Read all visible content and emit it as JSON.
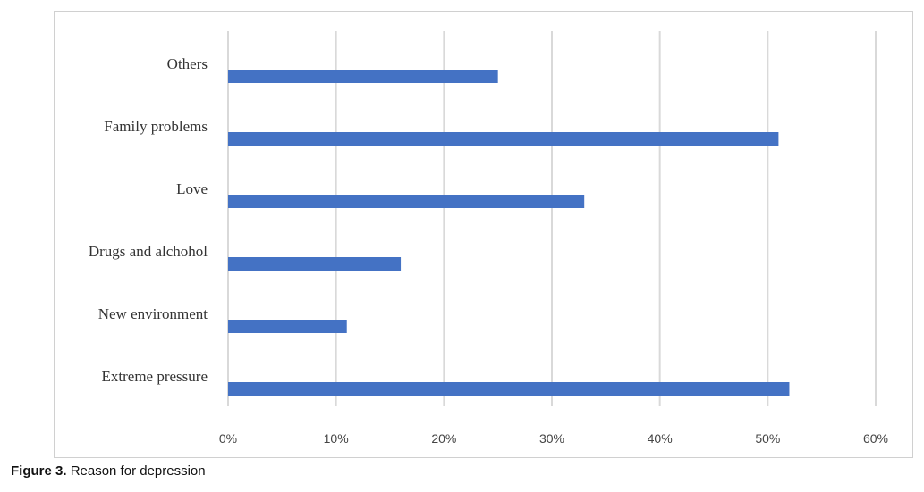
{
  "chart_data": {
    "type": "hbar",
    "categories": [
      "Others",
      "Family problems",
      "Love",
      "Drugs and alchohol",
      "New environment",
      "Extreme pressure"
    ],
    "values": [
      25,
      51,
      33,
      16,
      11,
      52
    ],
    "color": "#4472c4",
    "xlim": [
      0,
      60
    ],
    "xticks": [
      {
        "value": 0,
        "label": "0%"
      },
      {
        "value": 10,
        "label": "10%"
      },
      {
        "value": 20,
        "label": "20%"
      },
      {
        "value": 30,
        "label": "30%"
      },
      {
        "value": 40,
        "label": "40%"
      },
      {
        "value": 50,
        "label": "50%"
      },
      {
        "value": 60,
        "label": "60%"
      }
    ],
    "grid": true
  },
  "caption_label": "Figure 3.",
  "caption": "Reason for depression"
}
